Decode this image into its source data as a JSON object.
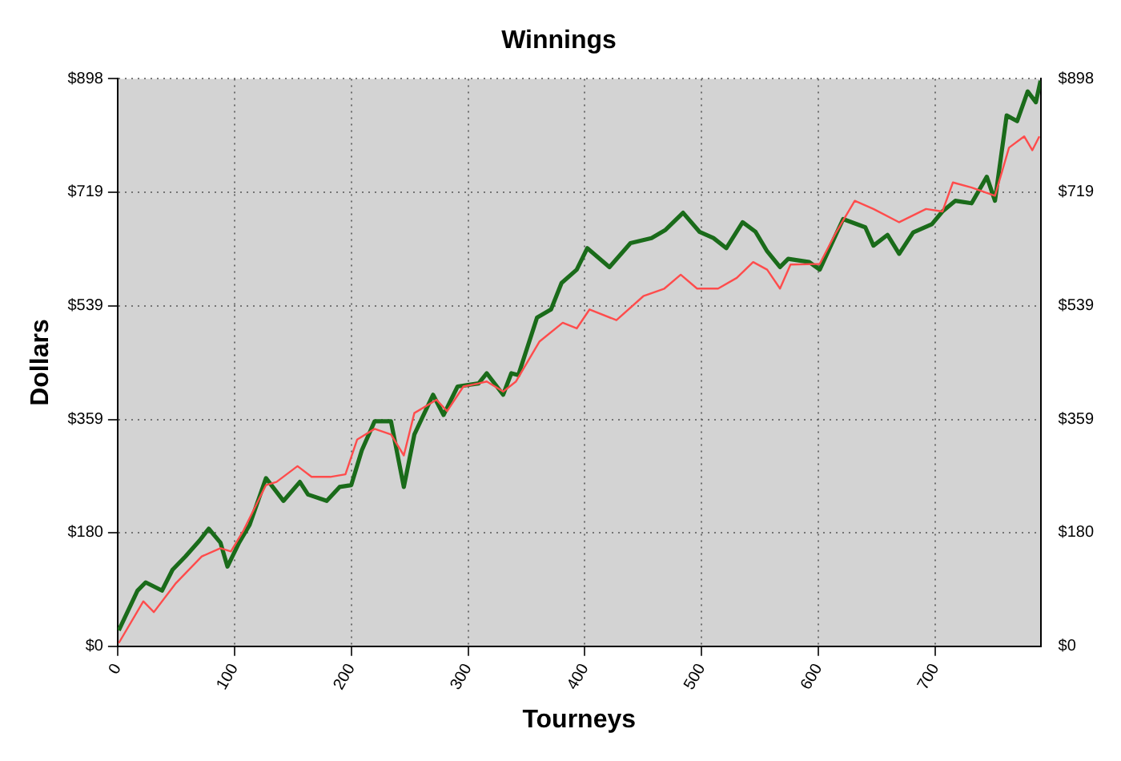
{
  "chart_data": {
    "type": "line",
    "title": "Winnings",
    "xlabel": "Tourneys",
    "ylabel": "Dollars",
    "xlim": [
      0,
      790
    ],
    "xticks": [
      0,
      100,
      200,
      300,
      400,
      500,
      600,
      700
    ],
    "ylim": [
      0,
      898
    ],
    "yticks": [
      {
        "value": 0,
        "label": "$0"
      },
      {
        "value": 180,
        "label": "$180"
      },
      {
        "value": 359,
        "label": "$359"
      },
      {
        "value": 539,
        "label": "$539"
      },
      {
        "value": 719,
        "label": "$719"
      },
      {
        "value": 898,
        "label": "$898"
      }
    ],
    "y2lim": [
      0,
      898
    ],
    "y2ticks": [
      {
        "value": 0,
        "label": "$0"
      },
      {
        "value": 180,
        "label": "$180"
      },
      {
        "value": 359,
        "label": "$359"
      },
      {
        "value": 539,
        "label": "$539"
      },
      {
        "value": 719,
        "label": "$719"
      },
      {
        "value": 898,
        "label": "$898"
      }
    ],
    "grid": true,
    "legend": false,
    "series": [
      {
        "color": "#ff4c4c",
        "x": [
          1,
          22,
          31,
          50,
          72,
          88,
          97,
          108,
          127,
          136,
          154,
          166,
          182,
          195,
          205,
          220,
          234,
          245,
          254,
          273,
          282,
          296,
          309,
          316,
          330,
          341,
          361,
          381,
          393,
          404,
          427,
          450,
          468,
          482,
          496,
          514,
          530,
          544,
          556,
          567,
          576,
          601,
          615,
          631,
          647,
          669,
          692,
          706,
          715,
          731,
          751,
          763,
          776,
          783,
          789
        ],
        "values": [
          5,
          71,
          54,
          100,
          142,
          155,
          150,
          184,
          255,
          260,
          285,
          268,
          268,
          272,
          327,
          344,
          335,
          302,
          369,
          390,
          372,
          411,
          416,
          419,
          403,
          419,
          482,
          512,
          503,
          533,
          516,
          554,
          566,
          588,
          566,
          566,
          583,
          608,
          596,
          566,
          604,
          605,
          655,
          705,
          692,
          671,
          692,
          688,
          734,
          726,
          713,
          789,
          807,
          785,
          807
        ]
      },
      {
        "color": "#1a6b1a",
        "x": [
          1,
          17,
          24,
          38,
          47,
          58,
          70,
          78,
          88,
          94,
          104,
          113,
          127,
          142,
          156,
          163,
          179,
          190,
          200,
          209,
          220,
          234,
          245,
          254,
          270,
          279,
          291,
          309,
          316,
          330,
          337,
          343,
          359,
          371,
          380,
          393,
          402,
          421,
          439,
          457,
          469,
          484,
          498,
          510,
          521,
          535,
          546,
          556,
          567,
          574,
          592,
          601,
          621,
          640,
          647,
          659,
          669,
          681,
          697,
          706,
          717,
          731,
          744,
          751,
          761,
          770,
          779,
          786,
          790
        ],
        "values": [
          25,
          88,
          101,
          88,
          121,
          142,
          167,
          186,
          164,
          126,
          164,
          192,
          266,
          230,
          260,
          240,
          230,
          252,
          255,
          310,
          356,
          356,
          252,
          335,
          398,
          366,
          411,
          416,
          432,
          398,
          432,
          429,
          520,
          533,
          575,
          596,
          630,
          600,
          638,
          646,
          659,
          686,
          656,
          646,
          630,
          671,
          656,
          625,
          600,
          613,
          608,
          596,
          676,
          663,
          634,
          651,
          621,
          655,
          668,
          688,
          705,
          701,
          743,
          705,
          840,
          831,
          878,
          861,
          895
        ]
      }
    ]
  }
}
